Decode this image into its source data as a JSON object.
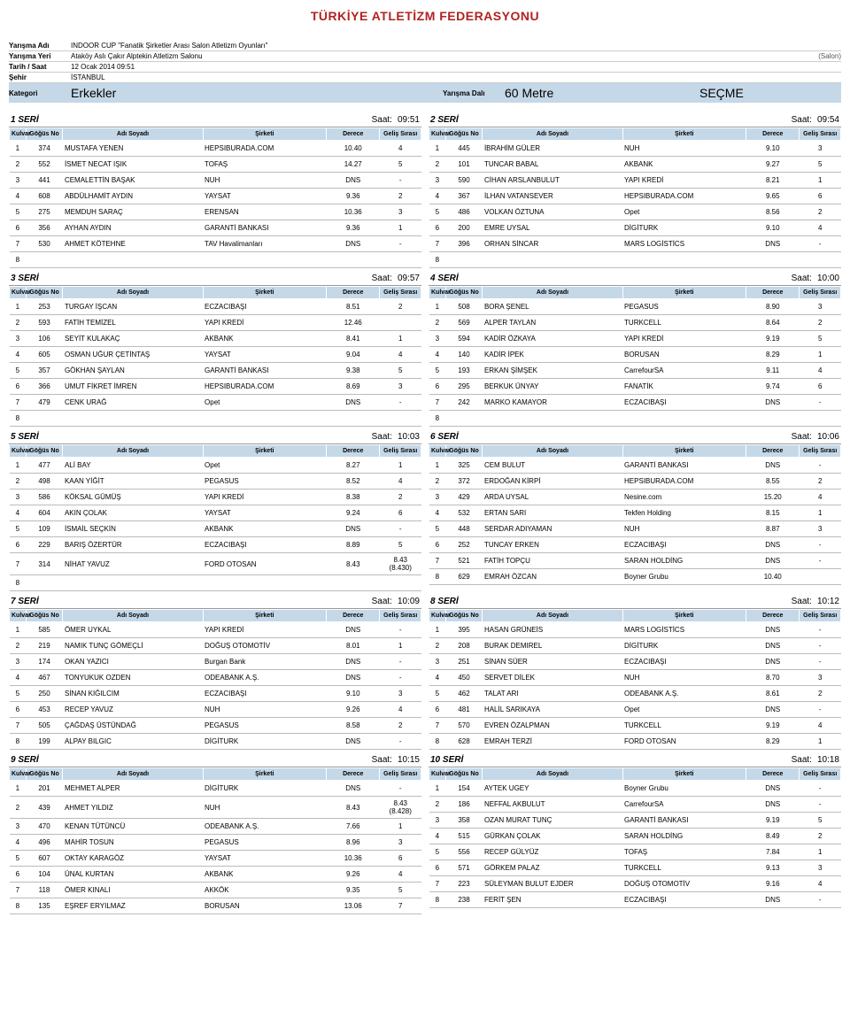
{
  "page_title": "TÜRKİYE ATLETİZM FEDERASYONU",
  "meta": {
    "labels": {
      "yarisma_adi": "Yarışma Adı",
      "yarisma_yeri": "Yarışma Yeri",
      "tarih_saat": "Tarih / Saat",
      "sehir": "Şehir",
      "kategori": "Kategori",
      "yarisma_dali": "Yarışma Dalı"
    },
    "yarisma_adi": "INDOOR CUP \"Fanatik Şirketler Arası Salon Atletizm Oyunları\"",
    "yarisma_yeri": "Ataköy Aslı Çakır Alptekin Atletizm Salonu",
    "yarisma_yeri_extra": "(Salon)",
    "tarih_saat": "12 Ocak 2014   09:51",
    "sehir": "İSTANBUL",
    "kategori": "Erkekler",
    "yarisma_dali": "60 Metre",
    "mode": "SEÇME"
  },
  "columns_left": {
    "lane": "Kulvar",
    "bib": "Göğüs No",
    "name": "Adı Soyadı",
    "team": "Şirketi",
    "res": "Derece",
    "rank": "Geliş Sırası"
  },
  "columns_right": {
    "lane": "Kulvar",
    "bib": "Göğüs No",
    "name": "Adı Soyadı",
    "team": "Şirketi",
    "res": "Derece",
    "rank": "Geliş Sırası"
  },
  "time_label": "Saat:",
  "seri_label": "SERİ",
  "heats": [
    {
      "n": 1,
      "time": "09:51",
      "rows": [
        {
          "lane": "1",
          "bib": "374",
          "name": "MUSTAFA YENEN",
          "team": "HEPSIBURADA.COM",
          "res": "10.40",
          "rank": "4"
        },
        {
          "lane": "2",
          "bib": "552",
          "name": "İSMET NECAT IŞIK",
          "team": "TOFAŞ",
          "res": "14.27",
          "rank": "5"
        },
        {
          "lane": "3",
          "bib": "441",
          "name": "CEMALETTİN BAŞAK",
          "team": "NUH",
          "res": "DNS",
          "rank": "-"
        },
        {
          "lane": "4",
          "bib": "608",
          "name": "ABDÜLHAMİT AYDIN",
          "team": "YAYSAT",
          "res": "9.36",
          "rank": "2"
        },
        {
          "lane": "5",
          "bib": "275",
          "name": "MEMDUH SARAÇ",
          "team": "ERENSAN",
          "res": "10.36",
          "rank": "3"
        },
        {
          "lane": "6",
          "bib": "356",
          "name": "AYHAN AYDIN",
          "team": "GARANTİ BANKASI",
          "res": "9.36",
          "rank": "1"
        },
        {
          "lane": "7",
          "bib": "530",
          "name": "AHMET KÖTEHNE",
          "team": "TAV Havalimanları",
          "res": "DNS",
          "rank": "-"
        },
        {
          "lane": "8",
          "bib": "",
          "name": "",
          "team": "",
          "res": "",
          "rank": ""
        }
      ]
    },
    {
      "n": 2,
      "time": "09:54",
      "rows": [
        {
          "lane": "1",
          "bib": "445",
          "name": "İBRAHİM GÜLER",
          "team": "NUH",
          "res": "9.10",
          "rank": "3"
        },
        {
          "lane": "2",
          "bib": "101",
          "name": "TUNCAR BABAL",
          "team": "AKBANK",
          "res": "9.27",
          "rank": "5"
        },
        {
          "lane": "3",
          "bib": "590",
          "name": "CİHAN ARSLANBULUT",
          "team": "YAPI KREDİ",
          "res": "8.21",
          "rank": "1"
        },
        {
          "lane": "4",
          "bib": "367",
          "name": "İLHAN VATANSEVER",
          "team": "HEPSIBURADA.COM",
          "res": "9.65",
          "rank": "6"
        },
        {
          "lane": "5",
          "bib": "486",
          "name": "VOLKAN ÖZTUNA",
          "team": "Opet",
          "res": "8.56",
          "rank": "2"
        },
        {
          "lane": "6",
          "bib": "200",
          "name": "EMRE UYSAL",
          "team": "DİGİTURK",
          "res": "9.10",
          "rank": "4"
        },
        {
          "lane": "7",
          "bib": "396",
          "name": "ORHAN SİNCAR",
          "team": "MARS LOGİSTİCS",
          "res": "DNS",
          "rank": "-"
        },
        {
          "lane": "8",
          "bib": "",
          "name": "",
          "team": "",
          "res": "",
          "rank": ""
        }
      ]
    },
    {
      "n": 3,
      "time": "09:57",
      "rows": [
        {
          "lane": "1",
          "bib": "253",
          "name": "TURGAY İŞCAN",
          "team": "ECZACIBAŞI",
          "res": "8.51",
          "rank": "2"
        },
        {
          "lane": "2",
          "bib": "593",
          "name": "FATİH TEMİZEL",
          "team": "YAPI KREDİ",
          "res": "12.46",
          "rank": ""
        },
        {
          "lane": "3",
          "bib": "106",
          "name": "SEYİT KULAKAÇ",
          "team": "AKBANK",
          "res": "8.41",
          "rank": "1"
        },
        {
          "lane": "4",
          "bib": "605",
          "name": "OSMAN UĞUR ÇETİNTAŞ",
          "team": "YAYSAT",
          "res": "9.04",
          "rank": "4"
        },
        {
          "lane": "5",
          "bib": "357",
          "name": "GÖKHAN ŞAYLAN",
          "team": "GARANTİ BANKASI",
          "res": "9.38",
          "rank": "5"
        },
        {
          "lane": "6",
          "bib": "366",
          "name": "UMUT FİKRET İMREN",
          "team": "HEPSIBURADA.COM",
          "res": "8.69",
          "rank": "3"
        },
        {
          "lane": "7",
          "bib": "479",
          "name": "CENK URAĞ",
          "team": "Opet",
          "res": "DNS",
          "rank": "-"
        },
        {
          "lane": "8",
          "bib": "",
          "name": "",
          "team": "",
          "res": "",
          "rank": ""
        }
      ]
    },
    {
      "n": 4,
      "time": "10:00",
      "rows": [
        {
          "lane": "1",
          "bib": "508",
          "name": "BORA ŞENEL",
          "team": "PEGASUS",
          "res": "8.90",
          "rank": "3"
        },
        {
          "lane": "2",
          "bib": "569",
          "name": "ALPER TAYLAN",
          "team": "TURKCELL",
          "res": "8.64",
          "rank": "2"
        },
        {
          "lane": "3",
          "bib": "594",
          "name": "KADİR ÖZKAYA",
          "team": "YAPI KREDİ",
          "res": "9.19",
          "rank": "5"
        },
        {
          "lane": "4",
          "bib": "140",
          "name": "KADİR İPEK",
          "team": "BORUSAN",
          "res": "8.29",
          "rank": "1"
        },
        {
          "lane": "5",
          "bib": "193",
          "name": "ERKAN ŞİMŞEK",
          "team": "CarrefourSA",
          "res": "9.11",
          "rank": "4"
        },
        {
          "lane": "6",
          "bib": "295",
          "name": "BERKUK ÜNYAY",
          "team": "FANATİK",
          "res": "9.74",
          "rank": "6"
        },
        {
          "lane": "7",
          "bib": "242",
          "name": "MARKO KAMAYOR",
          "team": "ECZACIBAŞI",
          "res": "DNS",
          "rank": "-"
        },
        {
          "lane": "8",
          "bib": "",
          "name": "",
          "team": "",
          "res": "",
          "rank": ""
        }
      ]
    },
    {
      "n": 5,
      "time": "10:03",
      "rows": [
        {
          "lane": "1",
          "bib": "477",
          "name": "ALİ BAY",
          "team": "Opet",
          "res": "8.27",
          "rank": "1"
        },
        {
          "lane": "2",
          "bib": "498",
          "name": "KAAN YİĞİT",
          "team": "PEGASUS",
          "res": "8.52",
          "rank": "4"
        },
        {
          "lane": "3",
          "bib": "586",
          "name": "KÖKSAL GÜMÜŞ",
          "team": "YAPI KREDİ",
          "res": "8.38",
          "rank": "2"
        },
        {
          "lane": "4",
          "bib": "604",
          "name": "AKIN ÇOLAK",
          "team": "YAYSAT",
          "res": "9.24",
          "rank": "6"
        },
        {
          "lane": "5",
          "bib": "109",
          "name": "İSMAİL SEÇKİN",
          "team": "AKBANK",
          "res": "DNS",
          "rank": "-"
        },
        {
          "lane": "6",
          "bib": "229",
          "name": "BARIŞ ÖZERTÜR",
          "team": "ECZACIBAŞI",
          "res": "8.89",
          "rank": "5"
        },
        {
          "lane": "7",
          "bib": "314",
          "name": "NİHAT YAVUZ",
          "team": "FORD OTOSAN",
          "res": "8.43",
          "rank": "8.43 (8.430)"
        },
        {
          "lane": "8",
          "bib": "",
          "name": "",
          "team": "",
          "res": "",
          "rank": ""
        }
      ]
    },
    {
      "n": 6,
      "time": "10:06",
      "rows": [
        {
          "lane": "1",
          "bib": "325",
          "name": "CEM BULUT",
          "team": "GARANTİ BANKASI",
          "res": "DNS",
          "rank": "-"
        },
        {
          "lane": "2",
          "bib": "372",
          "name": "ERDOĞAN KİRPİ",
          "team": "HEPSIBURADA.COM",
          "res": "8.55",
          "rank": "2"
        },
        {
          "lane": "3",
          "bib": "429",
          "name": "ARDA UYSAL",
          "team": "Nesine.com",
          "res": "15.20",
          "rank": "4"
        },
        {
          "lane": "4",
          "bib": "532",
          "name": "ERTAN SARI",
          "team": "Tekfen Holding",
          "res": "8.15",
          "rank": "1"
        },
        {
          "lane": "5",
          "bib": "448",
          "name": "SERDAR ADIYAMAN",
          "team": "NUH",
          "res": "8.87",
          "rank": "3"
        },
        {
          "lane": "6",
          "bib": "252",
          "name": "TUNCAY ERKEN",
          "team": "ECZACIBAŞI",
          "res": "DNS",
          "rank": "-"
        },
        {
          "lane": "7",
          "bib": "521",
          "name": "FATİH TOPÇU",
          "team": "SARAN HOLDİNG",
          "res": "DNS",
          "rank": "-"
        },
        {
          "lane": "8",
          "bib": "629",
          "name": "EMRAH ÖZCAN",
          "team": "Boyner Grubu",
          "res": "10.40",
          "rank": ""
        }
      ]
    },
    {
      "n": 7,
      "time": "10:09",
      "rows": [
        {
          "lane": "1",
          "bib": "585",
          "name": "ÖMER UYKAL",
          "team": "YAPI KREDİ",
          "res": "DNS",
          "rank": "-"
        },
        {
          "lane": "2",
          "bib": "219",
          "name": "NAMIK TUNÇ GÖMEÇLİ",
          "team": "DOĞUŞ OTOMOTİV",
          "res": "8.01",
          "rank": "1"
        },
        {
          "lane": "3",
          "bib": "174",
          "name": "OKAN YAZICI",
          "team": "Burgan Bank",
          "res": "DNS",
          "rank": "-"
        },
        {
          "lane": "4",
          "bib": "467",
          "name": "TONYUKUK OZDEN",
          "team": "ODEABANK A.Ş.",
          "res": "DNS",
          "rank": "-"
        },
        {
          "lane": "5",
          "bib": "250",
          "name": "SİNAN KIĞILCIM",
          "team": "ECZACIBAŞI",
          "res": "9.10",
          "rank": "3"
        },
        {
          "lane": "6",
          "bib": "453",
          "name": "RECEP YAVUZ",
          "team": "NUH",
          "res": "9.26",
          "rank": "4"
        },
        {
          "lane": "7",
          "bib": "505",
          "name": "ÇAĞDAŞ ÜSTÜNDAĞ",
          "team": "PEGASUS",
          "res": "8.58",
          "rank": "2"
        },
        {
          "lane": "8",
          "bib": "199",
          "name": "ALPAY BILGIC",
          "team": "DİGİTURK",
          "res": "DNS",
          "rank": "-"
        }
      ]
    },
    {
      "n": 8,
      "time": "10:12",
      "rows": [
        {
          "lane": "1",
          "bib": "395",
          "name": "HASAN GRÜNEİS",
          "team": "MARS LOGİSTİCS",
          "res": "DNS",
          "rank": "-"
        },
        {
          "lane": "2",
          "bib": "208",
          "name": "BURAK DEMIREL",
          "team": "DİGİTURK",
          "res": "DNS",
          "rank": "-"
        },
        {
          "lane": "3",
          "bib": "251",
          "name": "SİNAN SÜER",
          "team": "ECZACIBAŞI",
          "res": "DNS",
          "rank": "-"
        },
        {
          "lane": "4",
          "bib": "450",
          "name": "SERVET DİLEK",
          "team": "NUH",
          "res": "8.70",
          "rank": "3"
        },
        {
          "lane": "5",
          "bib": "462",
          "name": "TALAT ARI",
          "team": "ODEABANK A.Ş.",
          "res": "8.61",
          "rank": "2"
        },
        {
          "lane": "6",
          "bib": "481",
          "name": "HALİL SARIKAYA",
          "team": "Opet",
          "res": "DNS",
          "rank": "-"
        },
        {
          "lane": "7",
          "bib": "570",
          "name": "EVREN ÖZALPMAN",
          "team": "TURKCELL",
          "res": "9.19",
          "rank": "4"
        },
        {
          "lane": "8",
          "bib": "628",
          "name": "EMRAH TERZİ",
          "team": "FORD OTOSAN",
          "res": "8.29",
          "rank": "1"
        }
      ]
    },
    {
      "n": 9,
      "time": "10:15",
      "rows": [
        {
          "lane": "1",
          "bib": "201",
          "name": "MEHMET ALPER",
          "team": "DİGİTURK",
          "res": "DNS",
          "rank": "-"
        },
        {
          "lane": "2",
          "bib": "439",
          "name": "AHMET YILDIZ",
          "team": "NUH",
          "res": "8.43",
          "rank": "8.43 (8.428)"
        },
        {
          "lane": "3",
          "bib": "470",
          "name": "KENAN TÜTÜNCÜ",
          "team": "ODEABANK A.Ş.",
          "res": "7.66",
          "rank": "1"
        },
        {
          "lane": "4",
          "bib": "496",
          "name": "MAHİR TOSUN",
          "team": "PEGASUS",
          "res": "8.96",
          "rank": "3"
        },
        {
          "lane": "5",
          "bib": "607",
          "name": "OKTAY KARAGÖZ",
          "team": "YAYSAT",
          "res": "10.36",
          "rank": "6"
        },
        {
          "lane": "6",
          "bib": "104",
          "name": "ÜNAL KURTAN",
          "team": "AKBANK",
          "res": "9.26",
          "rank": "4"
        },
        {
          "lane": "7",
          "bib": "118",
          "name": "ÖMER KINALI",
          "team": "AKKÖK",
          "res": "9.35",
          "rank": "5"
        },
        {
          "lane": "8",
          "bib": "135",
          "name": "EŞREF ERYILMAZ",
          "team": "BORUSAN",
          "res": "13.06",
          "rank": "7"
        }
      ]
    },
    {
      "n": 10,
      "time": "10:18",
      "rows": [
        {
          "lane": "1",
          "bib": "154",
          "name": "AYTEK UGEY",
          "team": "Boyner Grubu",
          "res": "DNS",
          "rank": "-"
        },
        {
          "lane": "2",
          "bib": "186",
          "name": "NEFFAL AKBULUT",
          "team": "CarrefourSA",
          "res": "DNS",
          "rank": "-"
        },
        {
          "lane": "3",
          "bib": "358",
          "name": "OZAN MURAT TUNÇ",
          "team": "GARANTİ BANKASI",
          "res": "9.19",
          "rank": "5"
        },
        {
          "lane": "4",
          "bib": "515",
          "name": "GÜRKAN ÇOLAK",
          "team": "SARAN HOLDİNG",
          "res": "8.49",
          "rank": "2"
        },
        {
          "lane": "5",
          "bib": "556",
          "name": "RECEP GÜLYÜZ",
          "team": "TOFAŞ",
          "res": "7.84",
          "rank": "1"
        },
        {
          "lane": "6",
          "bib": "571",
          "name": "GÖRKEM PALAZ",
          "team": "TURKCELL",
          "res": "9.13",
          "rank": "3"
        },
        {
          "lane": "7",
          "bib": "223",
          "name": "SÜLEYMAN BULUT EJDER",
          "team": "DOĞUŞ OTOMOTİV",
          "res": "9.16",
          "rank": "4"
        },
        {
          "lane": "8",
          "bib": "238",
          "name": "FERİT ŞEN",
          "team": "ECZACIBAŞI",
          "res": "DNS",
          "rank": "-"
        }
      ]
    }
  ]
}
